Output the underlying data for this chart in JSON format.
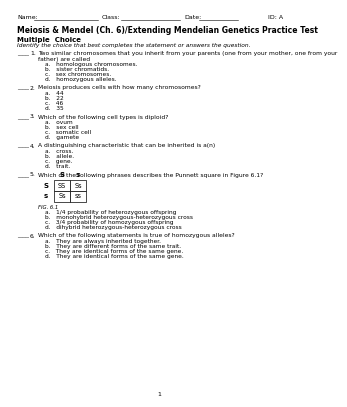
{
  "header_left": "Name:",
  "header_class": "Class:",
  "header_date": "Date:",
  "header_id": "ID: A",
  "title": "Meiosis & Mendel (Ch. 6)/Extending Mendelian Genetics Practice Test",
  "section_title": "Multiple  Choice",
  "section_subtitle": "Identify the choice that best completes the statement or answers the question.",
  "questions": [
    {
      "number": "1.",
      "text": "Two similar chromosomes that you inherit from your parents (one from your mother, one from your\nfather) are called",
      "choices": [
        "a.   homologous chromosomes.",
        "b.   sister chromatids.",
        "c.   sex chromosomes.",
        "d.   homozygous alleles."
      ]
    },
    {
      "number": "2.",
      "text": "Meiosis produces cells with how many chromosomes?",
      "choices": [
        "a.   44",
        "b.   22",
        "c.   46",
        "d.   35"
      ]
    },
    {
      "number": "3.",
      "text": "Which of the following cell types is diploid?",
      "choices": [
        "a.   ovum",
        "b.   sex cell",
        "c.   somatic cell",
        "d.   gamete"
      ]
    },
    {
      "number": "4.",
      "text": "A distinguishing characteristic that can be inherited is a(n)",
      "choices": [
        "a.   cross.",
        "b.   allele.",
        "c.   gene.",
        "d.   trait."
      ]
    },
    {
      "number": "5.",
      "text": "Which of the following phrases describes the Punnett square in Figure 6.1?",
      "choices": [
        "a.   1/4 probability of heterozygous offspring",
        "b.   monohybrid heterozygous-heterozygous cross",
        "c.   3/4 probability of homozygous offspring",
        "d.   dihybrid heterozygous-heterozygous cross"
      ],
      "has_punnett": true
    },
    {
      "number": "6.",
      "text": "Which of the following statements is true of homozygous alleles?",
      "choices": [
        "a.   They are always inherited together.",
        "b.   They are different forms of the same trait.",
        "c.   They are identical forms of the same gene.",
        "d.   They are identical forms of the same gene."
      ]
    }
  ],
  "punnett": {
    "row_labels": [
      "S",
      "s"
    ],
    "col_labels": [
      "S",
      "s"
    ],
    "cells": [
      [
        "SS",
        "Ss"
      ],
      [
        "Ss",
        "ss"
      ]
    ],
    "fig_label": "FIG. 6.1"
  },
  "page_number": "1",
  "bg_color": "#ffffff",
  "text_color": "#000000",
  "blank_line": "____"
}
